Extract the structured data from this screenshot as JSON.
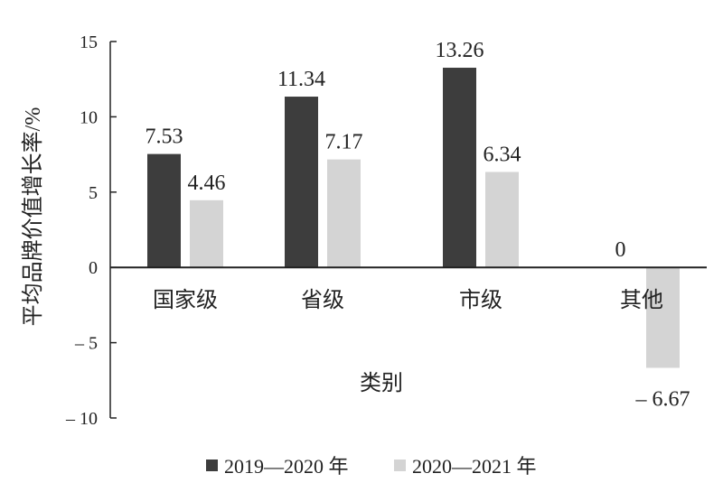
{
  "chart_data": {
    "type": "bar",
    "categories": [
      "国家级",
      "省级",
      "市级",
      "其他"
    ],
    "series": [
      {
        "name": "2019—2020 年",
        "values": [
          7.53,
          11.34,
          13.26,
          0
        ],
        "color": "#3d3d3d"
      },
      {
        "name": "2020—2021 年",
        "values": [
          4.46,
          7.17,
          6.34,
          -6.67
        ],
        "color": "#d4d4d4"
      }
    ],
    "data_labels": [
      [
        "7.53",
        "11.34",
        "13.26",
        "0"
      ],
      [
        "4.46",
        "7.17",
        "6.34",
        "– 6.67"
      ]
    ],
    "title": "",
    "xlabel": "类别",
    "ylabel": "平均品牌价值增长率/%",
    "ylim": [
      -10,
      15
    ],
    "yticks": [
      15,
      10,
      5,
      0,
      -5,
      -10
    ],
    "ytick_labels": [
      "15",
      "10",
      "5",
      "0",
      "– 5",
      "– 10"
    ],
    "grid": false,
    "legend_position": "bottom"
  }
}
